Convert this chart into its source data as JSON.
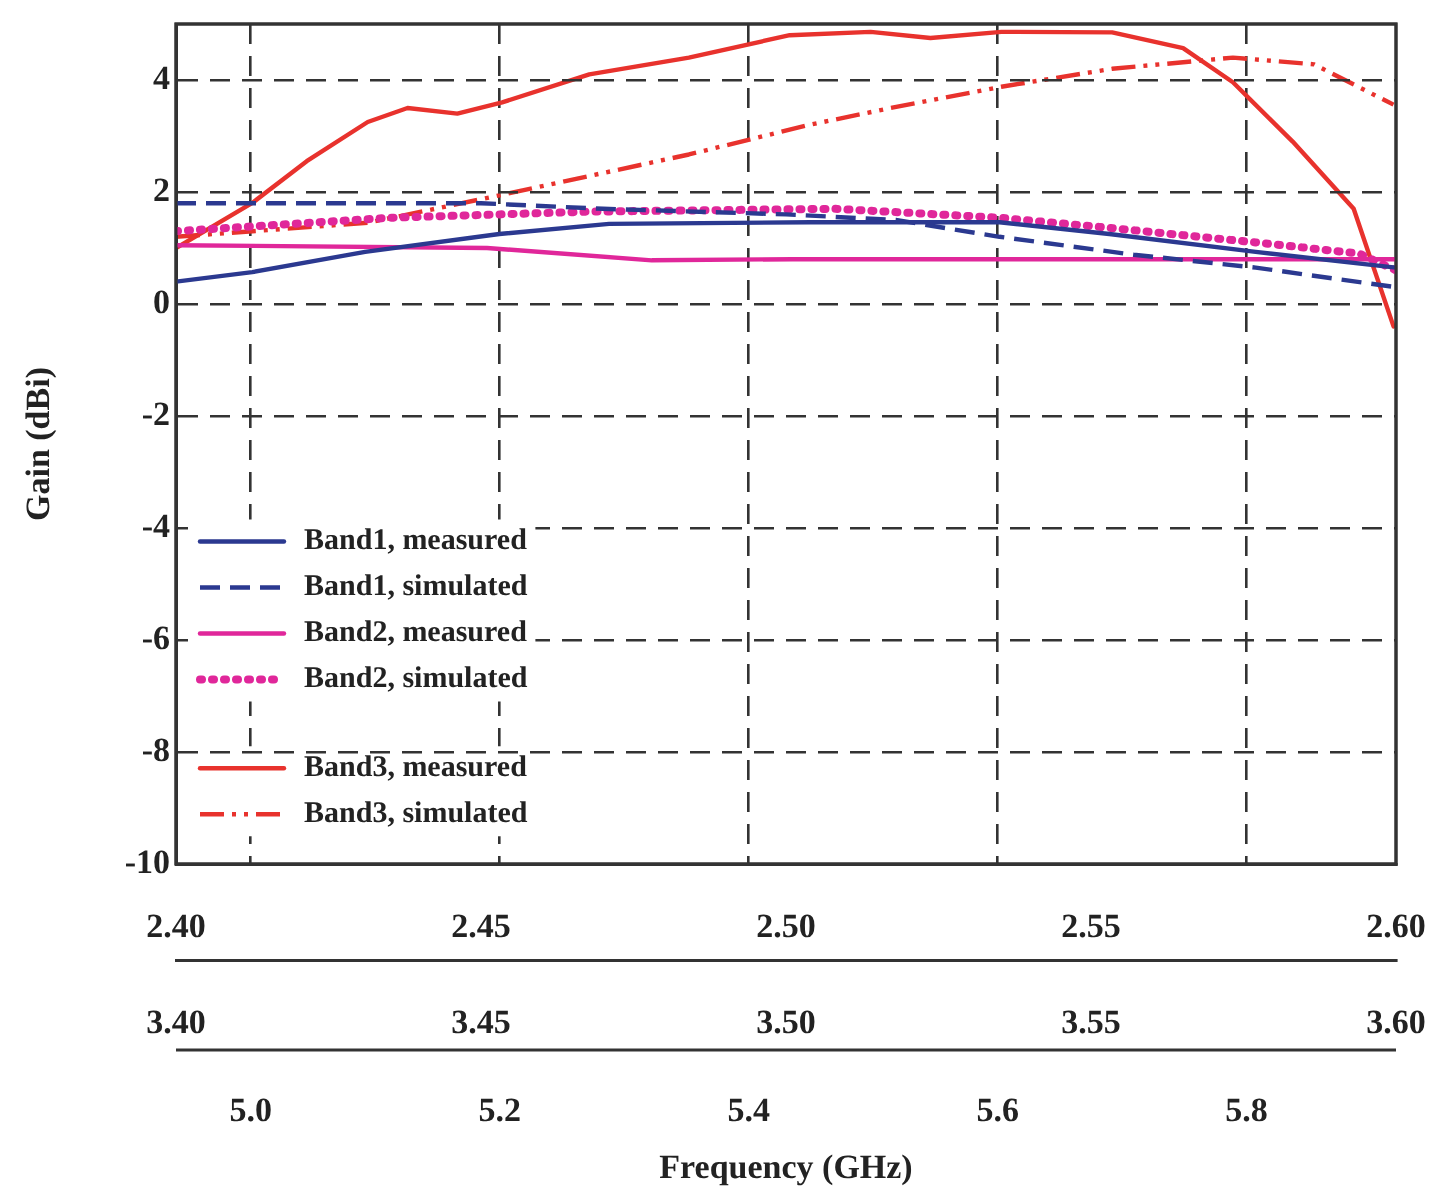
{
  "chart_data": [
    {
      "type": "line",
      "ylabel": "Gain (dBi)",
      "xlim": [
        2.4,
        2.6
      ],
      "xticks": [
        {
          "value": 2.4,
          "label": "2.40"
        },
        {
          "value": 2.45,
          "label": "2.45"
        },
        {
          "value": 2.5,
          "label": "2.50"
        },
        {
          "value": 2.55,
          "label": "2.55"
        },
        {
          "value": 2.6,
          "label": "2.60"
        }
      ],
      "x2lim": [
        3.4,
        3.6
      ],
      "x2ticks": [
        {
          "value": 3.4,
          "label": "3.40"
        },
        {
          "value": 3.45,
          "label": "3.45"
        },
        {
          "value": 3.5,
          "label": "3.50"
        },
        {
          "value": 3.55,
          "label": "3.55"
        },
        {
          "value": 3.6,
          "label": "3.60"
        }
      ],
      "ylim": [
        -10,
        5
      ],
      "yticks": [
        -10,
        -8,
        -6,
        -4,
        -2,
        0,
        2,
        4
      ],
      "grid": "y",
      "legend": "left",
      "series": [
        {
          "name": "Band1, measured",
          "color": "#2b3990",
          "line_style": "solid",
          "x": [
            2.4,
            2.4125,
            2.431,
            2.453,
            2.471,
            2.504,
            2.535,
            2.553,
            2.577,
            2.6
          ],
          "values": [
            0.4,
            0.57,
            0.93,
            1.25,
            1.43,
            1.46,
            1.46,
            1.25,
            0.93,
            0.65
          ]
        },
        {
          "name": "Band1, simulated",
          "color": "#2b3990",
          "line_style": "dashed",
          "x": [
            2.4,
            2.45,
            2.47,
            2.5,
            2.518,
            2.535,
            2.557,
            2.577,
            2.6
          ],
          "values": [
            1.8,
            1.8,
            1.7,
            1.6,
            1.5,
            1.2,
            0.88,
            0.65,
            0.3
          ]
        },
        {
          "name": "Band2, measured",
          "color": "#e0279a",
          "line_style": "solid",
          "axis": "x2",
          "x": [
            3.4,
            3.451,
            3.478,
            3.501,
            3.535,
            3.577,
            3.6
          ],
          "values": [
            1.05,
            1.0,
            0.78,
            0.8,
            0.8,
            0.8,
            0.8
          ]
        },
        {
          "name": "Band2, simulated",
          "color": "#e0279a",
          "line_style": "dotted",
          "axis": "x2",
          "x": [
            3.4,
            3.435,
            3.468,
            3.508,
            3.535,
            3.553,
            3.577,
            3.594,
            3.6
          ],
          "values": [
            1.3,
            1.54,
            1.65,
            1.7,
            1.54,
            1.36,
            1.1,
            0.9,
            0.6
          ]
        }
      ]
    },
    {
      "type": "line",
      "xlabel": "Frequency (GHz)",
      "xlim": [
        4.94,
        5.92
      ],
      "xticks": [
        {
          "value": 5.0,
          "label": "5.0"
        },
        {
          "value": 5.2,
          "label": "5.2"
        },
        {
          "value": 5.4,
          "label": "5.4"
        },
        {
          "value": 5.6,
          "label": "5.6"
        },
        {
          "value": 5.8,
          "label": "5.8"
        }
      ],
      "ylim": [
        -10,
        5
      ],
      "tick_labels": "x",
      "grid": "x",
      "legend": "bottom left",
      "series": [
        {
          "name": "Band3, measured",
          "color": "#e8322d",
          "line_style": "solid",
          "x": [
            4.94,
            5.001,
            5.045,
            5.094,
            5.126,
            5.166,
            5.202,
            5.272,
            5.352,
            5.433,
            5.498,
            5.546,
            5.603,
            5.692,
            5.749,
            5.789,
            5.837,
            5.886,
            5.918
          ],
          "values": [
            1.0,
            1.8,
            2.55,
            3.25,
            3.5,
            3.4,
            3.6,
            4.1,
            4.4,
            4.8,
            4.86,
            4.75,
            4.86,
            4.85,
            4.57,
            3.96,
            2.9,
            1.7,
            -0.4
          ]
        },
        {
          "name": "Band3, simulated",
          "color": "#e8322d",
          "line_style": "dashdot",
          "x": [
            4.94,
            5.094,
            5.202,
            5.352,
            5.449,
            5.514,
            5.603,
            5.692,
            5.789,
            5.854,
            5.918
          ],
          "values": [
            1.2,
            1.45,
            1.95,
            2.67,
            3.2,
            3.5,
            3.88,
            4.2,
            4.4,
            4.28,
            3.56
          ]
        }
      ]
    }
  ]
}
